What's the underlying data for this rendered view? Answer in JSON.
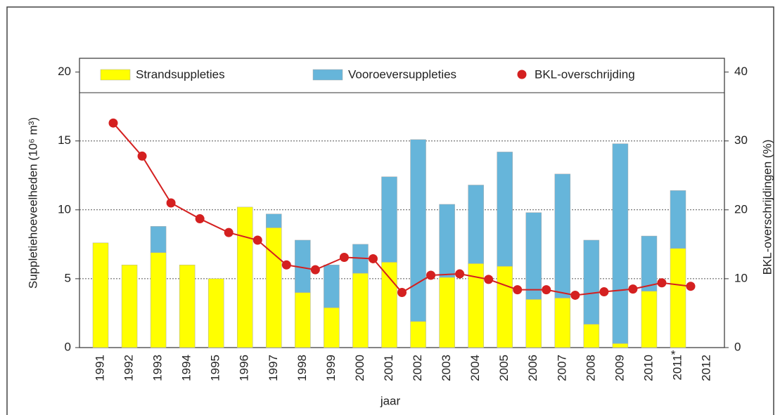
{
  "chart_data": {
    "type": "bar",
    "categories": [
      "1991",
      "1992",
      "1993",
      "1994",
      "1995",
      "1996",
      "1997",
      "1998",
      "1999",
      "2000",
      "2001",
      "2002",
      "2003",
      "2004",
      "2005",
      "2006",
      "2007",
      "2008",
      "2009",
      "2010",
      "2011",
      "2012"
    ],
    "series": [
      {
        "name": "Strandsuppleties",
        "color": "#ffff00",
        "type": "bar",
        "values": [
          7.6,
          6.0,
          6.9,
          6.0,
          5.0,
          10.2,
          8.7,
          4.0,
          2.9,
          5.4,
          6.2,
          1.9,
          5.1,
          6.1,
          5.9,
          3.5,
          3.6,
          1.7,
          0.3,
          4.1,
          7.2,
          null
        ]
      },
      {
        "name": "Vooroeversuppleties",
        "color": "#66b5da",
        "type": "bar",
        "values": [
          null,
          null,
          1.9,
          null,
          null,
          null,
          1.0,
          3.8,
          3.1,
          2.1,
          6.2,
          13.2,
          5.3,
          5.7,
          8.3,
          6.3,
          9.0,
          6.1,
          14.5,
          4.0,
          4.2,
          null
        ]
      },
      {
        "name": "BKL-overschrijding",
        "color": "#d42020",
        "type": "line",
        "axis": "y2",
        "values": [
          32.6,
          27.8,
          21.0,
          18.7,
          16.7,
          15.6,
          12.0,
          11.3,
          13.1,
          12.9,
          8.0,
          10.5,
          10.7,
          9.9,
          8.4,
          8.4,
          7.6,
          8.1,
          8.5,
          9.4,
          8.9,
          null
        ]
      }
    ],
    "x_label": "jaar",
    "y_label": "Suppletiehoeveelheden (10⁶ m³)",
    "y2_label": "BKL-overschrijdingen (%)",
    "x_annotation": "*",
    "ylim": [
      0,
      21
    ],
    "yticks": [
      0,
      5,
      10,
      15,
      20
    ],
    "y2lim": [
      0,
      42
    ],
    "y2ticks": [
      0,
      10,
      20,
      30,
      40
    ],
    "grid": true
  }
}
